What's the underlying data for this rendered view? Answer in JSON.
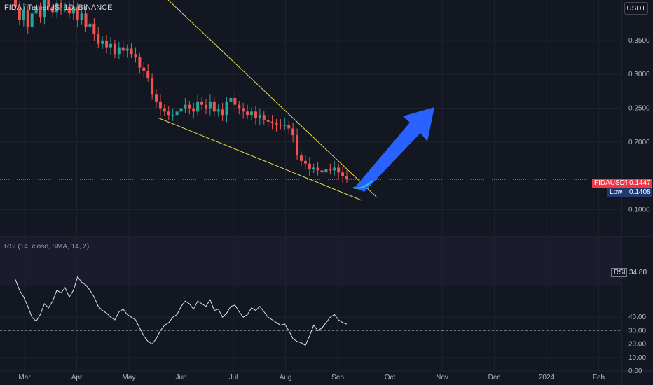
{
  "title": "FIDA / TetherUS, 1D, BINANCE",
  "currency": "USDT",
  "rsi_label": "RSI (14, close, SMA, 14, 2)",
  "tags": {
    "symbol": "FIDAUSDT",
    "price": "0.1447",
    "low_label": "Low",
    "low_value": "0.1408",
    "rsi_label": "RSI",
    "rsi_value": "34.80"
  },
  "chart_data": [
    {
      "type": "candlestick",
      "ylim": [
        0.06,
        0.41
      ],
      "y_ticks": [
        "0.3500",
        "0.3000",
        "0.2500",
        "0.2000",
        "0.1000"
      ],
      "x_ticks": [
        "Mar",
        "Apr",
        "May",
        "Jun",
        "Jul",
        "Aug",
        "Sep",
        "Oct",
        "Nov",
        "Dec",
        "2024",
        "Feb"
      ],
      "series": [
        {
          "values": [
            0.4,
            0.38,
            0.395,
            0.37,
            0.39,
            0.4,
            0.385,
            0.41,
            0.4,
            0.392,
            0.405,
            0.398,
            0.4,
            0.39,
            0.4,
            0.38,
            0.39,
            0.37,
            0.375,
            0.36,
            0.345,
            0.35,
            0.34,
            0.345,
            0.33,
            0.34,
            0.335,
            0.338,
            0.33,
            0.325,
            0.31,
            0.305,
            0.295,
            0.27,
            0.26,
            0.25,
            0.245,
            0.24,
            0.24,
            0.245,
            0.25,
            0.255,
            0.25,
            0.245,
            0.26,
            0.255,
            0.25,
            0.26,
            0.245,
            0.248,
            0.24,
            0.26,
            0.265,
            0.255,
            0.25,
            0.245,
            0.24,
            0.245,
            0.235,
            0.24,
            0.232,
            0.23,
            0.228,
            0.226,
            0.225,
            0.225,
            0.22,
            0.21,
            0.18,
            0.172,
            0.168,
            0.16,
            0.162,
            0.158,
            0.155,
            0.16,
            0.158,
            0.162,
            0.155,
            0.15,
            0.1447
          ]
        }
      ]
    },
    {
      "type": "line",
      "ylim": [
        0,
        100
      ],
      "y_ticks": [
        "40.00",
        "30.00",
        "20.00",
        "10.00",
        "0.00"
      ],
      "series": [
        {
          "values": [
            68,
            60,
            55,
            48,
            40,
            37,
            42,
            50,
            47,
            52,
            60,
            58,
            62,
            55,
            60,
            70,
            66,
            64,
            60,
            55,
            48,
            45,
            43,
            40,
            38,
            44,
            46,
            42,
            40,
            38,
            32,
            26,
            22,
            20,
            24,
            30,
            34,
            36,
            40,
            42,
            48,
            52,
            50,
            46,
            52,
            50,
            48,
            53,
            45,
            46,
            40,
            43,
            48,
            49,
            44,
            40,
            42,
            47,
            45,
            48,
            44,
            40,
            38,
            36,
            34,
            35,
            30,
            24,
            22,
            21,
            19,
            26,
            34,
            30,
            32,
            36,
            40,
            42,
            38,
            36,
            34.8
          ]
        }
      ]
    }
  ]
}
